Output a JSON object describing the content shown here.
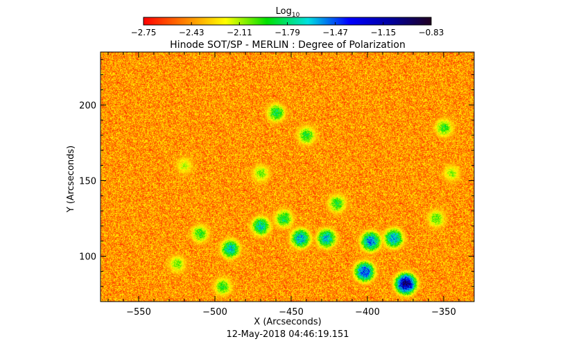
{
  "chart_data": {
    "type": "heatmap",
    "title": "Hinode SOT/SP - MERLIN : Degree of Polarization",
    "xlabel": "X (Arcseconds)",
    "ylabel": "Y (Arcseconds)",
    "date_label": "12-May-2018 04:46:19.151",
    "xlim": [
      -575,
      -330
    ],
    "ylim": [
      70,
      235
    ],
    "x_ticks": [
      -550,
      -500,
      -450,
      -400,
      -350
    ],
    "x_tick_labels": [
      "−550",
      "−500",
      "−450",
      "−400",
      "−350"
    ],
    "y_ticks": [
      100,
      150,
      200
    ],
    "y_tick_labels": [
      "100",
      "150",
      "200"
    ],
    "colorbar": {
      "label_base": "Log",
      "label_sub": "10",
      "range": [
        -2.75,
        -0.83
      ],
      "ticks": [
        -2.75,
        -2.43,
        -2.11,
        -1.79,
        -1.47,
        -1.15,
        -0.83
      ],
      "tick_labels": [
        "−2.75",
        "−2.43",
        "−2.11",
        "−1.79",
        "−1.47",
        "−1.15",
        "−0.83"
      ],
      "colors": [
        "#ff0000",
        "#ff8000",
        "#ffff00",
        "#00e000",
        "#00e0e0",
        "#0000ff",
        "#0000a0",
        "#200020"
      ]
    },
    "features": [
      {
        "x": -444,
        "y": 112,
        "log": -1.5
      },
      {
        "x": -427,
        "y": 112,
        "log": -1.55
      },
      {
        "x": -398,
        "y": 110,
        "log": -1.4
      },
      {
        "x": -383,
        "y": 112,
        "log": -1.5
      },
      {
        "x": -375,
        "y": 82,
        "log": -0.9
      },
      {
        "x": -402,
        "y": 90,
        "log": -1.3
      },
      {
        "x": -490,
        "y": 105,
        "log": -1.6
      },
      {
        "x": -470,
        "y": 120,
        "log": -1.65
      },
      {
        "x": -455,
        "y": 125,
        "log": -1.8
      },
      {
        "x": -510,
        "y": 115,
        "log": -1.9
      },
      {
        "x": -525,
        "y": 95,
        "log": -2.0
      },
      {
        "x": -495,
        "y": 80,
        "log": -1.9
      },
      {
        "x": -460,
        "y": 195,
        "log": -1.8
      },
      {
        "x": -440,
        "y": 180,
        "log": -1.85
      },
      {
        "x": -350,
        "y": 185,
        "log": -1.9
      },
      {
        "x": -355,
        "y": 125,
        "log": -1.95
      },
      {
        "x": -420,
        "y": 135,
        "log": -1.85
      },
      {
        "x": -470,
        "y": 155,
        "log": -2.0
      },
      {
        "x": -520,
        "y": 160,
        "log": -2.1
      },
      {
        "x": -345,
        "y": 155,
        "log": -2.05
      }
    ]
  }
}
